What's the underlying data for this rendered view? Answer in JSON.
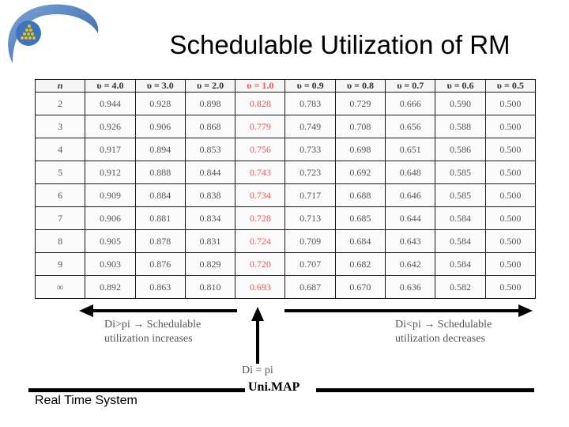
{
  "title": "Schedulable Utilization of RM",
  "table": {
    "headers": [
      "n",
      "υ = 4.0",
      "υ = 3.0",
      "υ = 2.0",
      "υ = 1.0",
      "υ = 0.9",
      "υ = 0.8",
      "υ = 0.7",
      "υ = 0.6",
      "υ = 0.5"
    ],
    "highlight_column": 4,
    "rows": [
      [
        "2",
        "0.944",
        "0.928",
        "0.898",
        "0.828",
        "0.783",
        "0.729",
        "0.666",
        "0.590",
        "0.500"
      ],
      [
        "3",
        "0.926",
        "0.906",
        "0.868",
        "0.779",
        "0.749",
        "0.708",
        "0.656",
        "0.588",
        "0.500"
      ],
      [
        "4",
        "0.917",
        "0.894",
        "0.853",
        "0.756",
        "0.733",
        "0.698",
        "0.651",
        "0.586",
        "0.500"
      ],
      [
        "5",
        "0.912",
        "0.888",
        "0.844",
        "0.743",
        "0.723",
        "0.692",
        "0.648",
        "0.585",
        "0.500"
      ],
      [
        "6",
        "0.909",
        "0.884",
        "0.838",
        "0.734",
        "0.717",
        "0.688",
        "0.646",
        "0.585",
        "0.500"
      ],
      [
        "7",
        "0.906",
        "0.881",
        "0.834",
        "0.728",
        "0.713",
        "0.685",
        "0.644",
        "0.584",
        "0.500"
      ],
      [
        "8",
        "0.905",
        "0.878",
        "0.831",
        "0.724",
        "0.709",
        "0.684",
        "0.643",
        "0.584",
        "0.500"
      ],
      [
        "9",
        "0.903",
        "0.876",
        "0.829",
        "0.720",
        "0.707",
        "0.682",
        "0.642",
        "0.584",
        "0.500"
      ],
      [
        "∞",
        "0.892",
        "0.863",
        "0.810",
        "0.693",
        "0.687",
        "0.670",
        "0.636",
        "0.582",
        "0.500"
      ]
    ]
  },
  "notes": {
    "left_line1": "Di>pi → Schedulable",
    "left_line2": "utilization increases",
    "right_line1": "Di<pi → Schedulable",
    "right_line2": "utilization decreases",
    "center": "Di = pi"
  },
  "footer": {
    "left_text": "Real Time System",
    "brand": "Uni.MAP"
  },
  "colors": {
    "highlight": "#ee5555",
    "logo_blue": "#2e64a8",
    "logo_yellow": "#f2c200"
  },
  "icons": {
    "logo": "university-logo-icon"
  }
}
